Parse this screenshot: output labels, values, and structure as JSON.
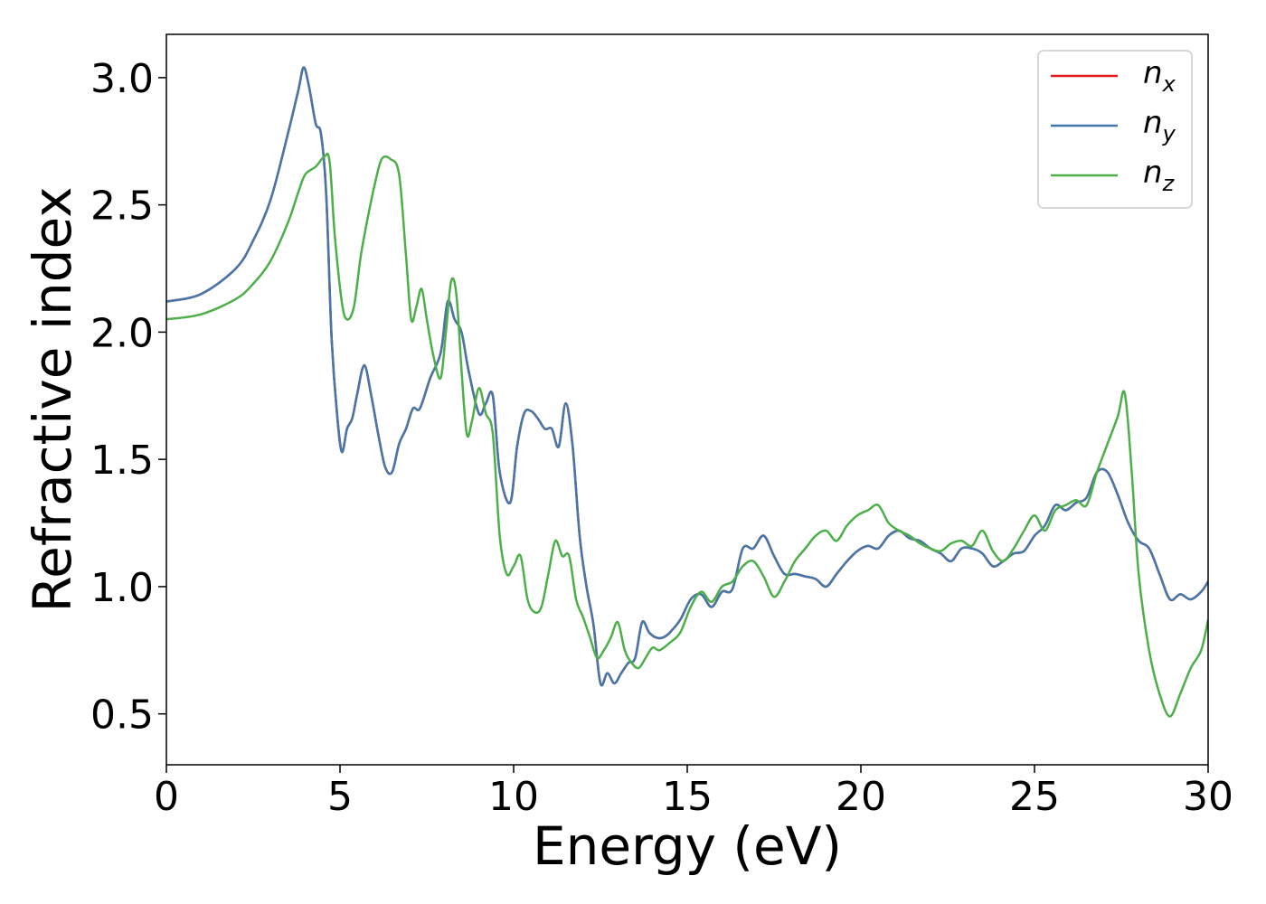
{
  "chart_data": {
    "type": "line",
    "xlabel": "Energy (eV)",
    "ylabel": "Refractive index",
    "xlim": [
      0,
      30
    ],
    "ylim": [
      0.3,
      3.17
    ],
    "xticks": [
      0,
      5,
      10,
      15,
      20,
      25,
      30
    ],
    "xtick_labels": [
      "0",
      "5",
      "10",
      "15",
      "20",
      "25",
      "30"
    ],
    "yticks": [
      0.5,
      1.0,
      1.5,
      2.0,
      2.5,
      3.0
    ],
    "ytick_labels": [
      "0.5",
      "1.0",
      "1.5",
      "2.0",
      "2.5",
      "3.0"
    ],
    "grid": false,
    "legend_position": "top-right",
    "series": [
      {
        "name": "n",
        "sub": "x",
        "color": "#e41a1c",
        "x": [
          0,
          1,
          2,
          2.5,
          3,
          3.5,
          3.8,
          3.95,
          4.1,
          4.3,
          4.45,
          4.6,
          4.75,
          4.9,
          5.05,
          5.2,
          5.35,
          5.5,
          5.7,
          5.9,
          6.1,
          6.3,
          6.5,
          6.7,
          6.9,
          7.1,
          7.3,
          7.6,
          7.9,
          8.1,
          8.3,
          8.5,
          8.7,
          9.0,
          9.2,
          9.4,
          9.6,
          9.9,
          10.1,
          10.3,
          10.5,
          10.7,
          10.9,
          11.1,
          11.3,
          11.5,
          11.7,
          11.9,
          12.1,
          12.3,
          12.5,
          12.7,
          12.9,
          13.1,
          13.3,
          13.5,
          13.7,
          13.9,
          14.1,
          14.3,
          14.5,
          14.8,
          15.1,
          15.4,
          15.7,
          16.0,
          16.3,
          16.6,
          16.9,
          17.2,
          17.5,
          17.8,
          18.1,
          18.4,
          18.7,
          19.0,
          19.3,
          19.6,
          19.9,
          20.2,
          20.5,
          20.8,
          21.1,
          21.4,
          21.7,
          22.0,
          22.3,
          22.6,
          22.9,
          23.2,
          23.5,
          23.8,
          24.1,
          24.4,
          24.7,
          25.0,
          25.3,
          25.6,
          25.9,
          26.2,
          26.5,
          26.8,
          27.1,
          27.4,
          27.7,
          28.0,
          28.3,
          28.6,
          28.9,
          29.2,
          29.5,
          29.8,
          30.0
        ],
        "y": [
          2.12,
          2.15,
          2.25,
          2.36,
          2.52,
          2.78,
          2.95,
          3.04,
          2.97,
          2.82,
          2.78,
          2.55,
          2.0,
          1.7,
          1.53,
          1.62,
          1.66,
          1.76,
          1.87,
          1.75,
          1.6,
          1.47,
          1.45,
          1.56,
          1.62,
          1.7,
          1.7,
          1.82,
          1.92,
          2.12,
          2.05,
          2.0,
          1.85,
          1.68,
          1.72,
          1.75,
          1.45,
          1.33,
          1.55,
          1.68,
          1.69,
          1.66,
          1.62,
          1.62,
          1.55,
          1.72,
          1.55,
          1.2,
          1.0,
          0.85,
          0.62,
          0.66,
          0.62,
          0.66,
          0.7,
          0.72,
          0.86,
          0.82,
          0.8,
          0.8,
          0.82,
          0.87,
          0.95,
          0.97,
          0.92,
          0.98,
          0.99,
          1.15,
          1.15,
          1.2,
          1.12,
          1.05,
          1.05,
          1.04,
          1.03,
          1.0,
          1.05,
          1.1,
          1.14,
          1.16,
          1.15,
          1.2,
          1.22,
          1.19,
          1.18,
          1.15,
          1.13,
          1.1,
          1.15,
          1.15,
          1.13,
          1.08,
          1.1,
          1.13,
          1.14,
          1.2,
          1.24,
          1.32,
          1.3,
          1.33,
          1.35,
          1.45,
          1.45,
          1.36,
          1.25,
          1.18,
          1.15,
          1.05,
          0.95,
          0.97,
          0.95,
          0.98,
          1.02
        ]
      },
      {
        "name": "n",
        "sub": "y",
        "color": "#4477aa",
        "x": [
          0,
          1,
          2,
          2.5,
          3,
          3.5,
          3.8,
          3.95,
          4.1,
          4.3,
          4.45,
          4.6,
          4.75,
          4.9,
          5.05,
          5.2,
          5.35,
          5.5,
          5.7,
          5.9,
          6.1,
          6.3,
          6.5,
          6.7,
          6.9,
          7.1,
          7.3,
          7.6,
          7.9,
          8.1,
          8.3,
          8.5,
          8.7,
          9.0,
          9.2,
          9.4,
          9.6,
          9.9,
          10.1,
          10.3,
          10.5,
          10.7,
          10.9,
          11.1,
          11.3,
          11.5,
          11.7,
          11.9,
          12.1,
          12.3,
          12.5,
          12.7,
          12.9,
          13.1,
          13.3,
          13.5,
          13.7,
          13.9,
          14.1,
          14.3,
          14.5,
          14.8,
          15.1,
          15.4,
          15.7,
          16.0,
          16.3,
          16.6,
          16.9,
          17.2,
          17.5,
          17.8,
          18.1,
          18.4,
          18.7,
          19.0,
          19.3,
          19.6,
          19.9,
          20.2,
          20.5,
          20.8,
          21.1,
          21.4,
          21.7,
          22.0,
          22.3,
          22.6,
          22.9,
          23.2,
          23.5,
          23.8,
          24.1,
          24.4,
          24.7,
          25.0,
          25.3,
          25.6,
          25.9,
          26.2,
          26.5,
          26.8,
          27.1,
          27.4,
          27.7,
          28.0,
          28.3,
          28.6,
          28.9,
          29.2,
          29.5,
          29.8,
          30.0
        ],
        "y": [
          2.12,
          2.15,
          2.25,
          2.36,
          2.52,
          2.78,
          2.95,
          3.04,
          2.97,
          2.82,
          2.78,
          2.55,
          2.0,
          1.7,
          1.53,
          1.62,
          1.66,
          1.76,
          1.87,
          1.75,
          1.6,
          1.47,
          1.45,
          1.56,
          1.62,
          1.7,
          1.7,
          1.82,
          1.92,
          2.12,
          2.05,
          2.0,
          1.85,
          1.68,
          1.72,
          1.75,
          1.45,
          1.33,
          1.55,
          1.68,
          1.69,
          1.66,
          1.62,
          1.62,
          1.55,
          1.72,
          1.55,
          1.2,
          1.0,
          0.85,
          0.62,
          0.66,
          0.62,
          0.66,
          0.7,
          0.72,
          0.86,
          0.82,
          0.8,
          0.8,
          0.82,
          0.87,
          0.95,
          0.97,
          0.92,
          0.98,
          0.99,
          1.15,
          1.15,
          1.2,
          1.12,
          1.05,
          1.05,
          1.04,
          1.03,
          1.0,
          1.05,
          1.1,
          1.14,
          1.16,
          1.15,
          1.2,
          1.22,
          1.19,
          1.18,
          1.15,
          1.13,
          1.1,
          1.15,
          1.15,
          1.13,
          1.08,
          1.1,
          1.13,
          1.14,
          1.2,
          1.24,
          1.32,
          1.3,
          1.33,
          1.35,
          1.45,
          1.45,
          1.36,
          1.25,
          1.18,
          1.15,
          1.05,
          0.95,
          0.97,
          0.95,
          0.98,
          1.02
        ]
      },
      {
        "name": "n",
        "sub": "z",
        "color": "#4daf4a",
        "x": [
          0,
          1,
          2,
          2.5,
          3,
          3.5,
          3.8,
          4.0,
          4.3,
          4.55,
          4.7,
          4.85,
          5.05,
          5.2,
          5.4,
          5.6,
          5.8,
          6.0,
          6.2,
          6.45,
          6.7,
          6.9,
          7.05,
          7.2,
          7.35,
          7.5,
          7.7,
          7.9,
          8.05,
          8.2,
          8.35,
          8.5,
          8.65,
          8.8,
          9.0,
          9.2,
          9.4,
          9.6,
          9.8,
          10.0,
          10.2,
          10.4,
          10.6,
          10.8,
          11.0,
          11.2,
          11.4,
          11.6,
          11.8,
          12.0,
          12.2,
          12.4,
          12.6,
          12.8,
          13.0,
          13.2,
          13.4,
          13.6,
          13.8,
          14.0,
          14.2,
          14.5,
          14.8,
          15.1,
          15.4,
          15.7,
          16.0,
          16.3,
          16.6,
          16.9,
          17.2,
          17.5,
          17.8,
          18.1,
          18.4,
          18.7,
          19.0,
          19.3,
          19.6,
          19.9,
          20.2,
          20.5,
          20.8,
          21.1,
          21.4,
          21.7,
          22.0,
          22.3,
          22.6,
          22.9,
          23.2,
          23.5,
          23.8,
          24.1,
          24.4,
          24.7,
          25.0,
          25.3,
          25.6,
          25.9,
          26.2,
          26.5,
          26.8,
          27.1,
          27.4,
          27.6,
          27.8,
          28.0,
          28.3,
          28.6,
          28.9,
          29.2,
          29.5,
          29.8,
          30.0
        ],
        "y": [
          2.05,
          2.07,
          2.13,
          2.19,
          2.28,
          2.43,
          2.55,
          2.62,
          2.65,
          2.69,
          2.67,
          2.38,
          2.12,
          2.05,
          2.1,
          2.3,
          2.45,
          2.58,
          2.68,
          2.68,
          2.62,
          2.3,
          2.05,
          2.1,
          2.17,
          2.05,
          1.9,
          1.82,
          2.0,
          2.2,
          2.15,
          1.85,
          1.6,
          1.65,
          1.78,
          1.68,
          1.6,
          1.2,
          1.05,
          1.08,
          1.12,
          0.95,
          0.9,
          0.92,
          1.05,
          1.18,
          1.12,
          1.12,
          0.95,
          0.88,
          0.8,
          0.72,
          0.75,
          0.8,
          0.86,
          0.75,
          0.7,
          0.68,
          0.72,
          0.76,
          0.75,
          0.78,
          0.82,
          0.92,
          0.98,
          0.94,
          1.0,
          1.02,
          1.08,
          1.1,
          1.04,
          0.96,
          1.02,
          1.1,
          1.15,
          1.2,
          1.22,
          1.18,
          1.24,
          1.28,
          1.3,
          1.32,
          1.25,
          1.22,
          1.2,
          1.17,
          1.15,
          1.14,
          1.17,
          1.18,
          1.16,
          1.22,
          1.14,
          1.1,
          1.15,
          1.22,
          1.28,
          1.22,
          1.3,
          1.32,
          1.34,
          1.32,
          1.45,
          1.56,
          1.67,
          1.76,
          1.45,
          1.05,
          0.75,
          0.58,
          0.49,
          0.58,
          0.68,
          0.75,
          0.87
        ]
      }
    ]
  }
}
